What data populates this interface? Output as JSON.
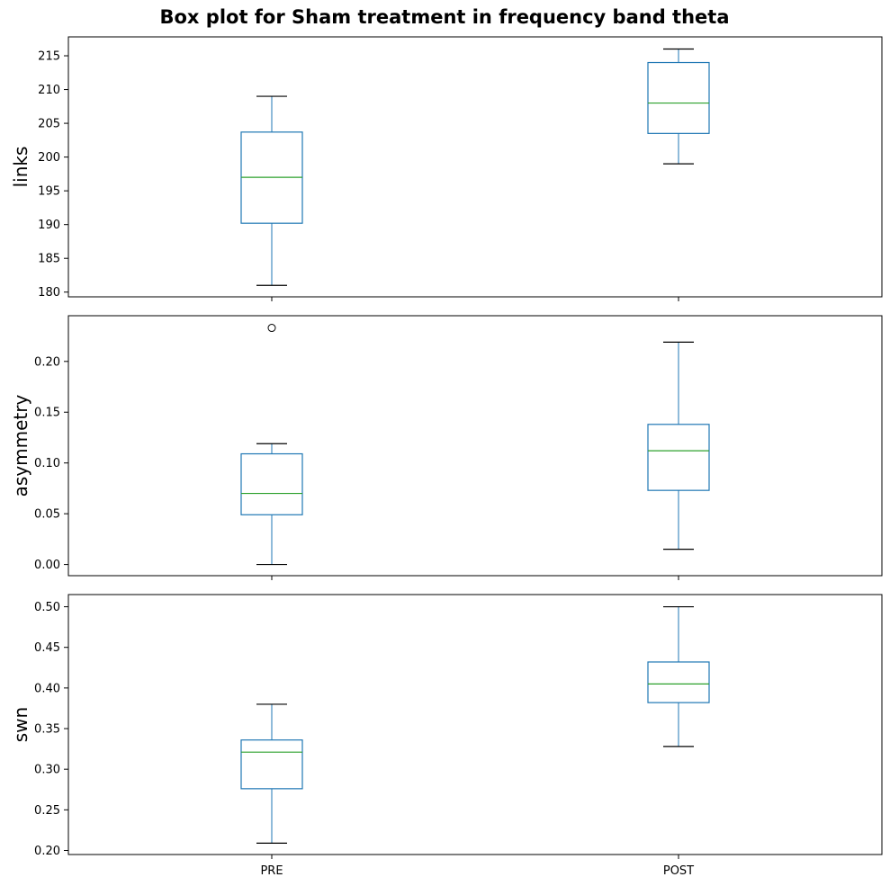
{
  "chart_data": {
    "type": "box",
    "title": "Box plot for Sham treatment in frequency band theta",
    "categories": [
      "PRE",
      "POST"
    ],
    "colors": {
      "box": "#1f77b4",
      "median": "#2ca02c",
      "whisker_cap": "#000000",
      "flier": "#000000"
    },
    "panels": [
      {
        "ylabel": "links",
        "yticks": [
          180,
          185,
          190,
          195,
          200,
          205,
          210,
          215
        ],
        "ytick_labels": [
          "180",
          "185",
          "190",
          "195",
          "200",
          "205",
          "210",
          "215"
        ],
        "ylim": [
          179.3,
          217.8
        ],
        "boxes": [
          {
            "category": "PRE",
            "whisker_low": 181,
            "q1": 190.2,
            "median": 197,
            "q3": 203.7,
            "whisker_high": 209,
            "fliers": []
          },
          {
            "category": "POST",
            "whisker_low": 199,
            "q1": 203.5,
            "median": 208,
            "q3": 214,
            "whisker_high": 216,
            "fliers": []
          }
        ]
      },
      {
        "ylabel": "asymmetry",
        "yticks": [
          0.0,
          0.05,
          0.1,
          0.15,
          0.2
        ],
        "ytick_labels": [
          "0.00",
          "0.05",
          "0.10",
          "0.15",
          "0.20"
        ],
        "ylim": [
          -0.011,
          0.245
        ],
        "boxes": [
          {
            "category": "PRE",
            "whisker_low": 0.0,
            "q1": 0.049,
            "median": 0.07,
            "q3": 0.109,
            "whisker_high": 0.119,
            "fliers": [
              0.233
            ]
          },
          {
            "category": "POST",
            "whisker_low": 0.015,
            "q1": 0.073,
            "median": 0.112,
            "q3": 0.138,
            "whisker_high": 0.219,
            "fliers": []
          }
        ]
      },
      {
        "ylabel": "swn",
        "yticks": [
          0.2,
          0.25,
          0.3,
          0.35,
          0.4,
          0.45,
          0.5
        ],
        "ytick_labels": [
          "0.20",
          "0.25",
          "0.30",
          "0.35",
          "0.40",
          "0.45",
          "0.50"
        ],
        "ylim": [
          0.195,
          0.515
        ],
        "boxes": [
          {
            "category": "PRE",
            "whisker_low": 0.209,
            "q1": 0.276,
            "median": 0.321,
            "q3": 0.336,
            "whisker_high": 0.38,
            "fliers": []
          },
          {
            "category": "POST",
            "whisker_low": 0.328,
            "q1": 0.382,
            "median": 0.405,
            "q3": 0.432,
            "whisker_high": 0.5,
            "fliers": []
          }
        ]
      }
    ]
  }
}
